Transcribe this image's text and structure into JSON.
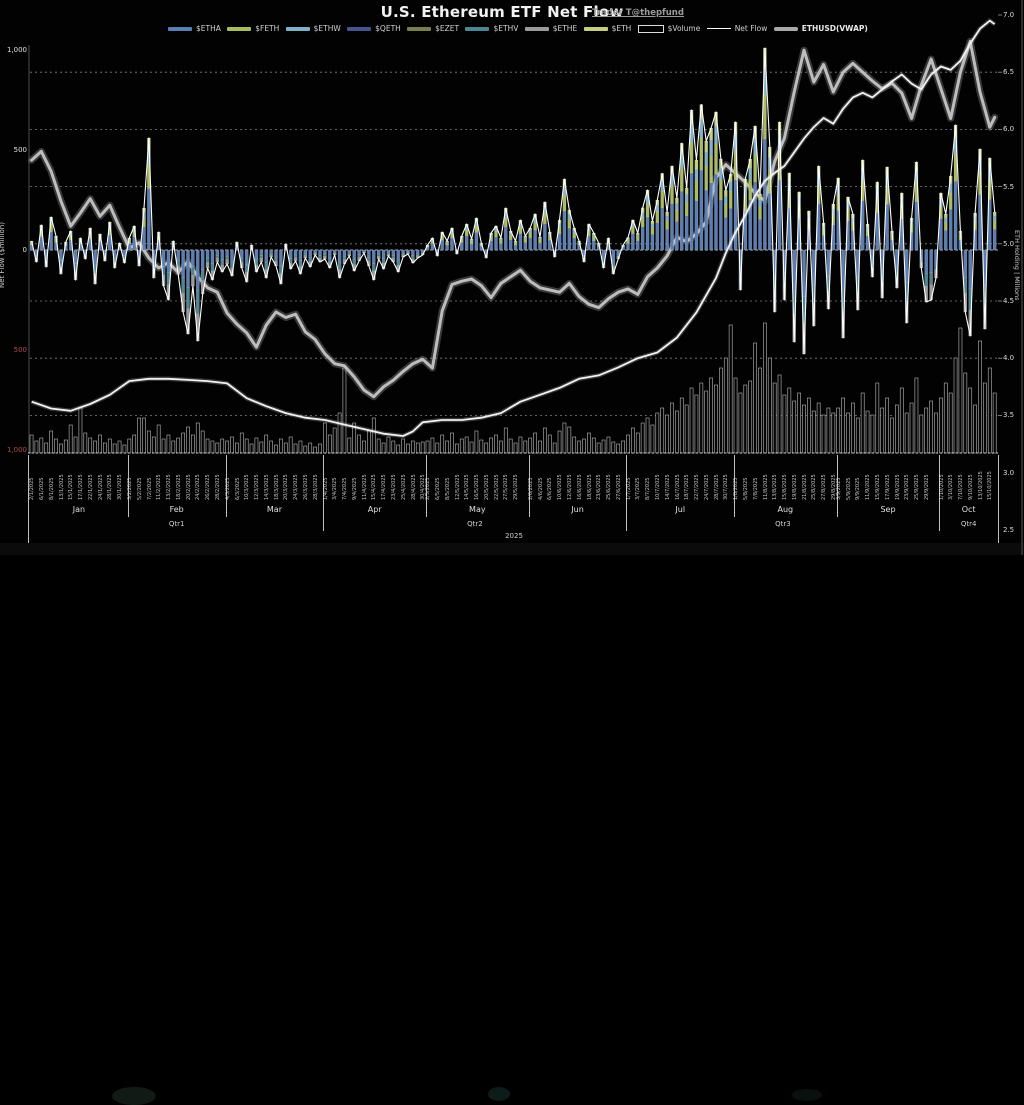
{
  "header": {
    "title": "U.S. Ethereum ETF Net Flow",
    "credit": "Trader T@thepfund"
  },
  "axes": {
    "left": {
      "label": "Net Flow ($million)",
      "ticks": [
        {
          "value": 1000,
          "label": "1,000",
          "color": "#e0e0e0"
        },
        {
          "value": 500,
          "label": "500",
          "color": "#e0e0e0"
        },
        {
          "value": 0,
          "label": "0",
          "color": "#e0e0e0"
        },
        {
          "value": -500,
          "label": "500",
          "color": "#b34d4d"
        },
        {
          "value": -1000,
          "label": "1,000",
          "color": "#b34d4d"
        }
      ]
    },
    "right": {
      "label": "ETH Holding | Millions",
      "ticks": [
        "7.0",
        "6.5",
        "6.0",
        "5.5",
        "5.0",
        "4.5",
        "4.0",
        "3.5",
        "3.0",
        "2.5"
      ]
    }
  },
  "legend": [
    {
      "label": "$ETHA",
      "swatch": "bar",
      "color": "#5b7fb5"
    },
    {
      "label": "$FETH",
      "swatch": "bar",
      "color": "#a9bc5f"
    },
    {
      "label": "$ETHW",
      "swatch": "bar",
      "color": "#7fb2c8"
    },
    {
      "label": "$QETH",
      "swatch": "bar",
      "color": "#44568e"
    },
    {
      "label": "$EZET",
      "swatch": "bar",
      "color": "#7b7f4b"
    },
    {
      "label": "$ETHV",
      "swatch": "bar",
      "color": "#4e8696"
    },
    {
      "label": "$ETHE",
      "swatch": "bar",
      "color": "#9b9b9b"
    },
    {
      "label": "$ETH",
      "swatch": "bar",
      "color": "#c3cf7f"
    },
    {
      "label": "$Volume",
      "swatch": "outline",
      "color": "#dcdcdc"
    },
    {
      "label": "Net Flow",
      "swatch": "line",
      "color": "#ffffff"
    },
    {
      "label": "ETHUSD(VWAP)",
      "swatch": "thick-line",
      "color": "#a9a9a9",
      "bold": true
    }
  ],
  "chart_data": {
    "type": "composite",
    "year": "2025",
    "left_axis_range": [
      -1000,
      1000
    ],
    "right_axis_range": [
      2.5,
      7.0
    ],
    "price_render_range_usd": [
      1000,
      5000
    ],
    "quarters": [
      {
        "label": "Qtr1",
        "months": [
          "Jan",
          "Feb",
          "Mar"
        ]
      },
      {
        "label": "Qtr2",
        "months": [
          "Apr",
          "May",
          "Jun"
        ]
      },
      {
        "label": "Qtr3",
        "months": [
          "Jul",
          "Aug",
          "Sep"
        ]
      },
      {
        "label": "Qtr4",
        "months": [
          "Oct"
        ]
      }
    ],
    "months": [
      {
        "label": "Jan",
        "bars": 20,
        "dates": [
          "2/1/2025",
          "6/1/2025",
          "8/1/2025",
          "13/1/2025",
          "15/1/2025",
          "17/1/2025",
          "22/1/2025",
          "24/1/2025",
          "28/1/2025",
          "30/1/2025"
        ]
      },
      {
        "label": "Feb",
        "bars": 20,
        "dates": [
          "3/2/2025",
          "5/2/2025",
          "7/2/2025",
          "11/2/2025",
          "13/2/2025",
          "18/2/2025",
          "20/2/2025",
          "24/2/2025",
          "26/2/2025",
          "28/2/2025"
        ]
      },
      {
        "label": "Mar",
        "bars": 20,
        "dates": [
          "4/3/2025",
          "6/3/2025",
          "10/3/2025",
          "12/3/2025",
          "14/3/2025",
          "18/3/2025",
          "20/3/2025",
          "24/3/2025",
          "26/3/2025",
          "28/3/2025"
        ]
      },
      {
        "label": "Apr",
        "bars": 21,
        "dates": [
          "1/4/2025",
          "3/4/2025",
          "7/4/2025",
          "9/4/2025",
          "11/4/2025",
          "15/4/2025",
          "17/4/2025",
          "23/4/2025",
          "25/4/2025",
          "28/4/2025",
          "30/4/2025"
        ]
      },
      {
        "label": "May",
        "bars": 21,
        "dates": [
          "2/5/2025",
          "6/5/2025",
          "8/5/2025",
          "12/5/2025",
          "14/5/2025",
          "16/5/2025",
          "20/5/2025",
          "22/5/2025",
          "27/5/2025",
          "29/5/2025"
        ]
      },
      {
        "label": "Jun",
        "bars": 20,
        "dates": [
          "2/6/2025",
          "4/6/2025",
          "6/6/2025",
          "10/6/2025",
          "12/6/2025",
          "16/6/2025",
          "18/6/2025",
          "23/6/2025",
          "25/6/2025",
          "27/6/2025"
        ]
      },
      {
        "label": "Jul",
        "bars": 22,
        "dates": [
          "1/7/2025",
          "3/7/2025",
          "8/7/2025",
          "10/7/2025",
          "14/7/2025",
          "16/7/2025",
          "18/7/2025",
          "22/7/2025",
          "24/7/2025",
          "28/7/2025",
          "30/7/2025"
        ]
      },
      {
        "label": "Aug",
        "bars": 21,
        "dates": [
          "1/8/2025",
          "5/8/2025",
          "7/8/2025",
          "11/8/2025",
          "13/8/2025",
          "15/8/2025",
          "19/8/2025",
          "21/8/2025",
          "25/8/2025",
          "27/8/2025",
          "29/8/2025"
        ]
      },
      {
        "label": "Sep",
        "bars": 21,
        "dates": [
          "3/9/2025",
          "5/9/2025",
          "9/9/2025",
          "11/9/2025",
          "15/9/2025",
          "17/9/2025",
          "19/9/2025",
          "23/9/2025",
          "25/9/2025",
          "29/9/2025"
        ]
      },
      {
        "label": "Oct",
        "bars": 12,
        "dates": [
          "1/10/2025",
          "3/10/2025",
          "7/10/2025",
          "9/10/2025",
          "13/10/2025",
          "15/10/2025"
        ]
      }
    ],
    "net_flow_musd": [
      45,
      -60,
      125,
      -85,
      165,
      70,
      -120,
      40,
      95,
      -150,
      60,
      -45,
      110,
      -170,
      80,
      -55,
      140,
      -90,
      35,
      -65,
      60,
      120,
      -80,
      210,
      560,
      -140,
      90,
      -180,
      -250,
      45,
      -120,
      -310,
      -420,
      -180,
      -455,
      -220,
      -90,
      -150,
      -60,
      -110,
      -70,
      -130,
      40,
      -90,
      -160,
      25,
      -110,
      -60,
      -140,
      -35,
      -80,
      -170,
      30,
      -95,
      -55,
      -120,
      -40,
      -85,
      -25,
      -60,
      -45,
      -90,
      -25,
      -140,
      -70,
      -30,
      -105,
      -55,
      -15,
      -80,
      -150,
      -45,
      -95,
      -30,
      -60,
      -110,
      -35,
      -20,
      -65,
      -40,
      -25,
      25,
      60,
      -30,
      90,
      45,
      110,
      -20,
      70,
      130,
      55,
      160,
      35,
      -40,
      85,
      120,
      60,
      210,
      95,
      45,
      150,
      70,
      110,
      180,
      65,
      240,
      90,
      -35,
      150,
      355,
      200,
      110,
      45,
      -60,
      130,
      85,
      35,
      -90,
      60,
      -120,
      -45,
      25,
      62,
      150,
      85,
      211,
      300,
      145,
      250,
      383,
      190,
      420,
      260,
      534,
      310,
      700,
      450,
      727,
      545,
      610,
      690,
      455,
      298,
      380,
      640,
      -200,
      355,
      455,
      620,
      280,
      1010,
      515,
      -310,
      640,
      -250,
      385,
      -460,
      290,
      -520,
      195,
      -380,
      420,
      135,
      -295,
      230,
      360,
      -440,
      265,
      180,
      -300,
      450,
      130,
      -135,
      340,
      -240,
      415,
      95,
      -190,
      285,
      -365,
      160,
      440,
      -90,
      -260,
      -250,
      -140,
      285,
      180,
      370,
      625,
      95,
      -310,
      -430,
      185,
      505,
      -395,
      460,
      190
    ],
    "volume_rel": [
      18,
      12,
      15,
      10,
      22,
      14,
      9,
      13,
      28,
      16,
      45,
      20,
      15,
      12,
      18,
      10,
      14,
      9,
      12,
      8,
      14,
      18,
      35,
      35,
      22,
      16,
      28,
      14,
      18,
      12,
      15,
      20,
      26,
      18,
      30,
      22,
      14,
      12,
      10,
      14,
      12,
      16,
      10,
      20,
      14,
      9,
      15,
      11,
      18,
      12,
      8,
      14,
      10,
      16,
      9,
      12,
      7,
      10,
      6,
      9,
      30,
      18,
      25,
      40,
      85,
      15,
      30,
      18,
      12,
      22,
      35,
      14,
      10,
      16,
      12,
      8,
      14,
      9,
      12,
      10,
      11,
      12,
      15,
      10,
      18,
      12,
      20,
      9,
      14,
      16,
      11,
      22,
      13,
      10,
      15,
      18,
      12,
      25,
      14,
      10,
      16,
      12,
      15,
      20,
      12,
      25,
      18,
      10,
      22,
      30,
      26,
      16,
      12,
      14,
      20,
      15,
      10,
      13,
      16,
      11,
      9,
      12,
      18,
      25,
      20,
      30,
      35,
      28,
      40,
      45,
      38,
      50,
      42,
      55,
      48,
      65,
      58,
      70,
      62,
      75,
      68,
      85,
      95,
      128,
      75,
      60,
      68,
      72,
      110,
      85,
      130,
      95,
      70,
      78,
      58,
      65,
      52,
      60,
      48,
      55,
      42,
      50,
      38,
      45,
      40,
      45,
      55,
      40,
      50,
      35,
      60,
      42,
      38,
      70,
      45,
      55,
      35,
      48,
      65,
      40,
      50,
      75,
      38,
      45,
      52,
      40,
      55,
      70,
      60,
      95,
      125,
      80,
      65,
      48,
      112,
      70,
      85,
      60
    ],
    "price_vwap_usd": [
      [
        0,
        3680
      ],
      [
        2,
        3760
      ],
      [
        4,
        3580
      ],
      [
        6,
        3310
      ],
      [
        8,
        3080
      ],
      [
        10,
        3200
      ],
      [
        12,
        3330
      ],
      [
        14,
        3170
      ],
      [
        16,
        3270
      ],
      [
        18,
        3070
      ],
      [
        20,
        2880
      ],
      [
        22,
        2930
      ],
      [
        24,
        2790
      ],
      [
        26,
        2700
      ],
      [
        28,
        2750
      ],
      [
        30,
        2660
      ],
      [
        32,
        2760
      ],
      [
        34,
        2620
      ],
      [
        36,
        2520
      ],
      [
        38,
        2480
      ],
      [
        40,
        2290
      ],
      [
        42,
        2190
      ],
      [
        44,
        2110
      ],
      [
        46,
        1980
      ],
      [
        48,
        2180
      ],
      [
        50,
        2300
      ],
      [
        52,
        2250
      ],
      [
        54,
        2280
      ],
      [
        56,
        2120
      ],
      [
        58,
        2050
      ],
      [
        60,
        1920
      ],
      [
        62,
        1830
      ],
      [
        64,
        1810
      ],
      [
        66,
        1710
      ],
      [
        68,
        1590
      ],
      [
        70,
        1530
      ],
      [
        72,
        1620
      ],
      [
        74,
        1680
      ],
      [
        76,
        1760
      ],
      [
        78,
        1830
      ],
      [
        80,
        1870
      ],
      [
        82,
        1790
      ],
      [
        84,
        2310
      ],
      [
        86,
        2550
      ],
      [
        88,
        2580
      ],
      [
        90,
        2600
      ],
      [
        92,
        2540
      ],
      [
        94,
        2430
      ],
      [
        96,
        2560
      ],
      [
        98,
        2620
      ],
      [
        100,
        2680
      ],
      [
        102,
        2580
      ],
      [
        104,
        2520
      ],
      [
        106,
        2500
      ],
      [
        108,
        2480
      ],
      [
        110,
        2560
      ],
      [
        112,
        2440
      ],
      [
        114,
        2370
      ],
      [
        116,
        2340
      ],
      [
        118,
        2420
      ],
      [
        120,
        2480
      ],
      [
        122,
        2510
      ],
      [
        124,
        2460
      ],
      [
        126,
        2620
      ],
      [
        128,
        2700
      ],
      [
        130,
        2810
      ],
      [
        132,
        2980
      ],
      [
        134,
        2940
      ],
      [
        136,
        3010
      ],
      [
        138,
        3120
      ],
      [
        140,
        3520
      ],
      [
        142,
        3640
      ],
      [
        144,
        3560
      ],
      [
        146,
        3480
      ],
      [
        148,
        3380
      ],
      [
        150,
        3310
      ],
      [
        152,
        3670
      ],
      [
        154,
        3880
      ],
      [
        156,
        4300
      ],
      [
        158,
        4680
      ],
      [
        160,
        4390
      ],
      [
        162,
        4550
      ],
      [
        164,
        4300
      ],
      [
        166,
        4480
      ],
      [
        168,
        4560
      ],
      [
        170,
        4480
      ],
      [
        172,
        4400
      ],
      [
        174,
        4330
      ],
      [
        176,
        4380
      ],
      [
        178,
        4290
      ],
      [
        180,
        4060
      ],
      [
        182,
        4360
      ],
      [
        184,
        4600
      ],
      [
        186,
        4330
      ],
      [
        188,
        4060
      ],
      [
        190,
        4480
      ],
      [
        192,
        4760
      ],
      [
        194,
        4300
      ],
      [
        196,
        3980
      ],
      [
        197,
        4070
      ]
    ],
    "eth_holding_millions": [
      [
        0,
        3.62
      ],
      [
        4,
        3.56
      ],
      [
        8,
        3.54
      ],
      [
        12,
        3.6
      ],
      [
        16,
        3.68
      ],
      [
        20,
        3.8
      ],
      [
        24,
        3.82
      ],
      [
        28,
        3.82
      ],
      [
        32,
        3.81
      ],
      [
        36,
        3.8
      ],
      [
        40,
        3.78
      ],
      [
        44,
        3.65
      ],
      [
        48,
        3.58
      ],
      [
        52,
        3.52
      ],
      [
        56,
        3.48
      ],
      [
        60,
        3.46
      ],
      [
        64,
        3.42
      ],
      [
        68,
        3.38
      ],
      [
        72,
        3.34
      ],
      [
        76,
        3.32
      ],
      [
        78,
        3.36
      ],
      [
        80,
        3.44
      ],
      [
        84,
        3.46
      ],
      [
        88,
        3.46
      ],
      [
        92,
        3.48
      ],
      [
        96,
        3.52
      ],
      [
        100,
        3.62
      ],
      [
        104,
        3.68
      ],
      [
        108,
        3.74
      ],
      [
        112,
        3.82
      ],
      [
        116,
        3.85
      ],
      [
        120,
        3.92
      ],
      [
        124,
        4.0
      ],
      [
        128,
        4.05
      ],
      [
        132,
        4.18
      ],
      [
        136,
        4.4
      ],
      [
        140,
        4.7
      ],
      [
        142,
        4.92
      ],
      [
        144,
        5.1
      ],
      [
        146,
        5.25
      ],
      [
        148,
        5.42
      ],
      [
        150,
        5.55
      ],
      [
        152,
        5.62
      ],
      [
        154,
        5.68
      ],
      [
        156,
        5.8
      ],
      [
        158,
        5.92
      ],
      [
        160,
        6.02
      ],
      [
        162,
        6.1
      ],
      [
        164,
        6.05
      ],
      [
        166,
        6.18
      ],
      [
        168,
        6.28
      ],
      [
        170,
        6.32
      ],
      [
        172,
        6.28
      ],
      [
        174,
        6.35
      ],
      [
        176,
        6.42
      ],
      [
        178,
        6.48
      ],
      [
        180,
        6.4
      ],
      [
        182,
        6.35
      ],
      [
        184,
        6.48
      ],
      [
        186,
        6.55
      ],
      [
        188,
        6.52
      ],
      [
        190,
        6.6
      ],
      [
        192,
        6.75
      ],
      [
        194,
        6.88
      ],
      [
        196,
        6.95
      ],
      [
        197,
        6.92
      ]
    ],
    "stack_pos": [
      [
        "$ETHA",
        0.55,
        "#5b7fb5"
      ],
      [
        "$FETH",
        0.22,
        "#a9bc5f"
      ],
      [
        "$ETHW",
        0.13,
        "#7fb2c8"
      ],
      [
        "$ETH",
        0.1,
        "#c3cf7f"
      ]
    ],
    "stack_neg": [
      [
        "$ETHA",
        0.45,
        "#5b7fb5"
      ],
      [
        "$ETHV",
        0.25,
        "#4e8696"
      ],
      [
        "$ETHE",
        0.3,
        "#9b9b9b"
      ]
    ],
    "line_colors": {
      "net_flow": "#ffffff",
      "price": "#c4c4c4",
      "holding": "#f2f2f2",
      "volume_outline": "#b9b9b9"
    }
  }
}
